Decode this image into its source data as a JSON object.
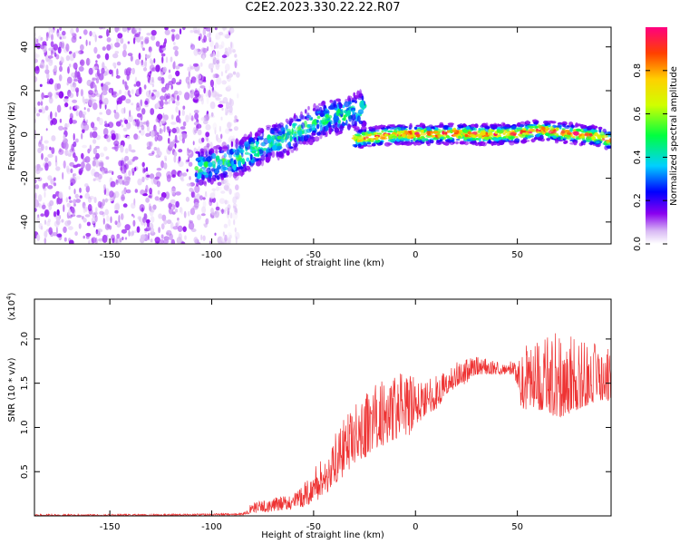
{
  "title": "C2E2.2023.330.22.22.R07",
  "chart_data": [
    {
      "type": "heatmap",
      "title": "",
      "xlabel": "Height of straight line (km)",
      "ylabel": "Frequency (Hz)",
      "xlim": [
        -187,
        96
      ],
      "ylim": [
        -50,
        49
      ],
      "xticks": [
        -150,
        -100,
        -50,
        0,
        50
      ],
      "yticks": [
        -40,
        -20,
        0,
        20,
        40
      ],
      "colorbar": {
        "label": "Normalized spectral amplitude",
        "range": [
          0,
          1
        ],
        "ticks": [
          "0.0",
          "0.2",
          "0.4",
          "0.6",
          "0.8"
        ]
      },
      "features": [
        {
          "name": "noise region",
          "x_range": [
            -187,
            -95
          ],
          "y_range": [
            -50,
            49
          ],
          "amplitude": 0.15
        },
        {
          "name": "rising signal",
          "points": [
            [
              -108,
              -16
            ],
            [
              -95,
              -13
            ],
            [
              -85,
              -10
            ],
            [
              -75,
              -5
            ],
            [
              -65,
              -2
            ],
            [
              -55,
              3
            ],
            [
              -45,
              7
            ],
            [
              -35,
              9
            ],
            [
              -25,
              12
            ]
          ],
          "amplitude": 0.45
        },
        {
          "name": "stable signal",
          "points": [
            [
              -30,
              -2
            ],
            [
              -20,
              -1
            ],
            [
              -10,
              0
            ],
            [
              0,
              0
            ],
            [
              10,
              0
            ],
            [
              20,
              0.5
            ],
            [
              30,
              0
            ],
            [
              40,
              0
            ],
            [
              50,
              0.5
            ],
            [
              60,
              2
            ],
            [
              70,
              1
            ],
            [
              80,
              0
            ],
            [
              90,
              -1
            ],
            [
              96,
              -3
            ]
          ],
          "amplitude": 0.85
        }
      ]
    },
    {
      "type": "line",
      "title": "",
      "xlabel": "Height of straight line (km)",
      "ylabel": "SNR (10 * v/v)",
      "scale_label": "(x10",
      "scale_exp": "4",
      "xlim": [
        -187,
        96
      ],
      "ylim": [
        0,
        2.45
      ],
      "xticks": [
        -150,
        -100,
        -50,
        0,
        50
      ],
      "yticks": [
        "0.5",
        "1.0",
        "1.5",
        "2.0"
      ],
      "color": "#ee3333",
      "envelope": [
        [
          -187,
          0.02,
          0.0
        ],
        [
          -130,
          0.02,
          0.0
        ],
        [
          -85,
          0.03,
          0.01
        ],
        [
          -80,
          0.15,
          0.03
        ],
        [
          -70,
          0.2,
          0.05
        ],
        [
          -60,
          0.25,
          0.08
        ],
        [
          -55,
          0.35,
          0.1
        ],
        [
          -50,
          0.55,
          0.15
        ],
        [
          -45,
          0.7,
          0.2
        ],
        [
          -40,
          0.9,
          0.35
        ],
        [
          -35,
          1.1,
          0.45
        ],
        [
          -30,
          1.25,
          0.6
        ],
        [
          -25,
          1.4,
          0.65
        ],
        [
          -20,
          1.5,
          0.75
        ],
        [
          -15,
          1.6,
          0.8
        ],
        [
          -10,
          1.6,
          0.85
        ],
        [
          -5,
          1.65,
          0.85
        ],
        [
          0,
          1.55,
          1.0
        ],
        [
          5,
          1.55,
          1.15
        ],
        [
          10,
          1.6,
          1.2
        ],
        [
          15,
          1.65,
          1.35
        ],
        [
          20,
          1.75,
          1.45
        ],
        [
          25,
          1.8,
          1.5
        ],
        [
          30,
          1.8,
          1.6
        ],
        [
          40,
          1.75,
          1.6
        ],
        [
          48,
          1.75,
          1.6
        ],
        [
          52,
          1.9,
          1.2
        ],
        [
          60,
          2.0,
          1.2
        ],
        [
          70,
          2.1,
          1.1
        ],
        [
          80,
          2.0,
          1.2
        ],
        [
          90,
          1.95,
          1.3
        ],
        [
          96,
          1.9,
          1.3
        ]
      ]
    }
  ]
}
